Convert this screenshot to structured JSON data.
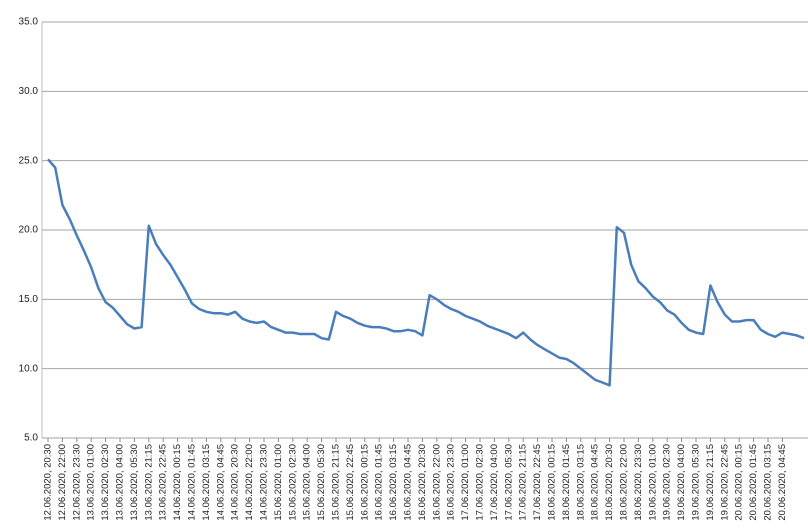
{
  "chart_data": {
    "type": "line",
    "categories": [
      "12.06.2020, 20:30",
      null,
      "12.06.2020, 22:00",
      null,
      "12.06.2020, 23:30",
      null,
      "13.06.2020, 01:00",
      null,
      "13.06.2020, 02:30",
      null,
      "13.06.2020, 04:00",
      null,
      "13.06.2020, 05:30",
      null,
      "13.06.2020, 21:15",
      null,
      "13.06.2020, 22:45",
      null,
      "14.06.2020, 00:15",
      null,
      "14.06.2020, 01:45",
      null,
      "14.06.2020, 03:15",
      null,
      "14.06.2020, 04:45",
      null,
      "14.06.2020, 20:30",
      null,
      "14.06.2020, 22:00",
      null,
      "14.06.2020, 23:30",
      null,
      "15.06.2020, 01:00",
      null,
      "15.06.2020, 02:30",
      null,
      "15.06.2020, 04:00",
      null,
      "15.06.2020, 05:30",
      null,
      "15.06.2020, 21:15",
      null,
      "15.06.2020, 22:45",
      null,
      "16.06.2020, 00:15",
      null,
      "16.06.2020, 01:45",
      null,
      "16.06.2020, 03:15",
      null,
      "16.06.2020, 04:45",
      null,
      "16.06.2020, 20:30",
      null,
      "16.06.2020, 22:00",
      null,
      "16.06.2020, 23:30",
      null,
      "17.06.2020, 01:00",
      null,
      "17.06.2020, 02:30",
      null,
      "17.06.2020, 04:00",
      null,
      "17.06.2020, 05:30",
      null,
      "17.06.2020, 21:15",
      null,
      "17.06.2020, 22:45",
      null,
      "18.06.2020, 00:15",
      null,
      "18.06.2020, 01:45",
      null,
      "18.06.2020, 03:15",
      null,
      "18.06.2020, 04:45",
      null,
      "18.06.2020, 20:30",
      null,
      "18.06.2020, 22:00",
      null,
      "18.06.2020, 23:30",
      null,
      "19.06.2020, 01:00",
      null,
      "19.06.2020, 02:30",
      null,
      "19.06.2020, 04:00",
      null,
      "19.06.2020, 05:30",
      null,
      "19.06.2020, 21:15",
      null,
      "19.06.2020, 22:45",
      null,
      "20.06.2020, 00:15",
      null,
      "20.06.2020, 01:45",
      null,
      "20.06.2020, 03:15",
      null,
      "20.06.2020, 04:45",
      null,
      null,
      null
    ],
    "series": [
      {
        "color": "#4a7ebb",
        "values": [
          25.1,
          24.5,
          21.8,
          20.8,
          19.6,
          18.5,
          17.3,
          15.8,
          14.8,
          14.4,
          13.8,
          13.2,
          12.9,
          13.0,
          20.3,
          19.0,
          18.2,
          17.5,
          16.6,
          15.7,
          14.7,
          14.3,
          14.1,
          14.0,
          14.0,
          13.9,
          14.1,
          13.6,
          13.4,
          13.3,
          13.4,
          13.0,
          12.8,
          12.6,
          12.6,
          12.5,
          12.5,
          12.5,
          12.2,
          12.1,
          14.1,
          13.8,
          13.6,
          13.3,
          13.1,
          13.0,
          13.0,
          12.9,
          12.7,
          12.7,
          12.8,
          12.7,
          12.4,
          15.3,
          15.0,
          14.6,
          14.3,
          14.1,
          13.8,
          13.6,
          13.4,
          13.1,
          12.9,
          12.7,
          12.5,
          12.2,
          12.6,
          12.1,
          11.7,
          11.4,
          11.1,
          10.8,
          10.7,
          10.4,
          10.0,
          9.6,
          9.2,
          9.0,
          8.8,
          20.2,
          19.8,
          17.5,
          16.3,
          15.8,
          15.2,
          14.8,
          14.2,
          13.9,
          13.3,
          12.8,
          12.6,
          12.5,
          16.0,
          14.8,
          13.9,
          13.4,
          13.4,
          13.5,
          13.5,
          12.8,
          12.5,
          12.3,
          12.6,
          12.5,
          12.4,
          12.2
        ]
      }
    ],
    "ylim": [
      5,
      35
    ],
    "yticks": [
      {
        "value": 5,
        "label": "5.0"
      },
      {
        "value": 10,
        "label": "10.0"
      },
      {
        "value": 15,
        "label": "15.0"
      },
      {
        "value": 20,
        "label": "20.0"
      },
      {
        "value": 25,
        "label": "25.0"
      },
      {
        "value": 30,
        "label": "30.0"
      },
      {
        "value": 35,
        "label": "35.0"
      }
    ],
    "grid": true
  }
}
